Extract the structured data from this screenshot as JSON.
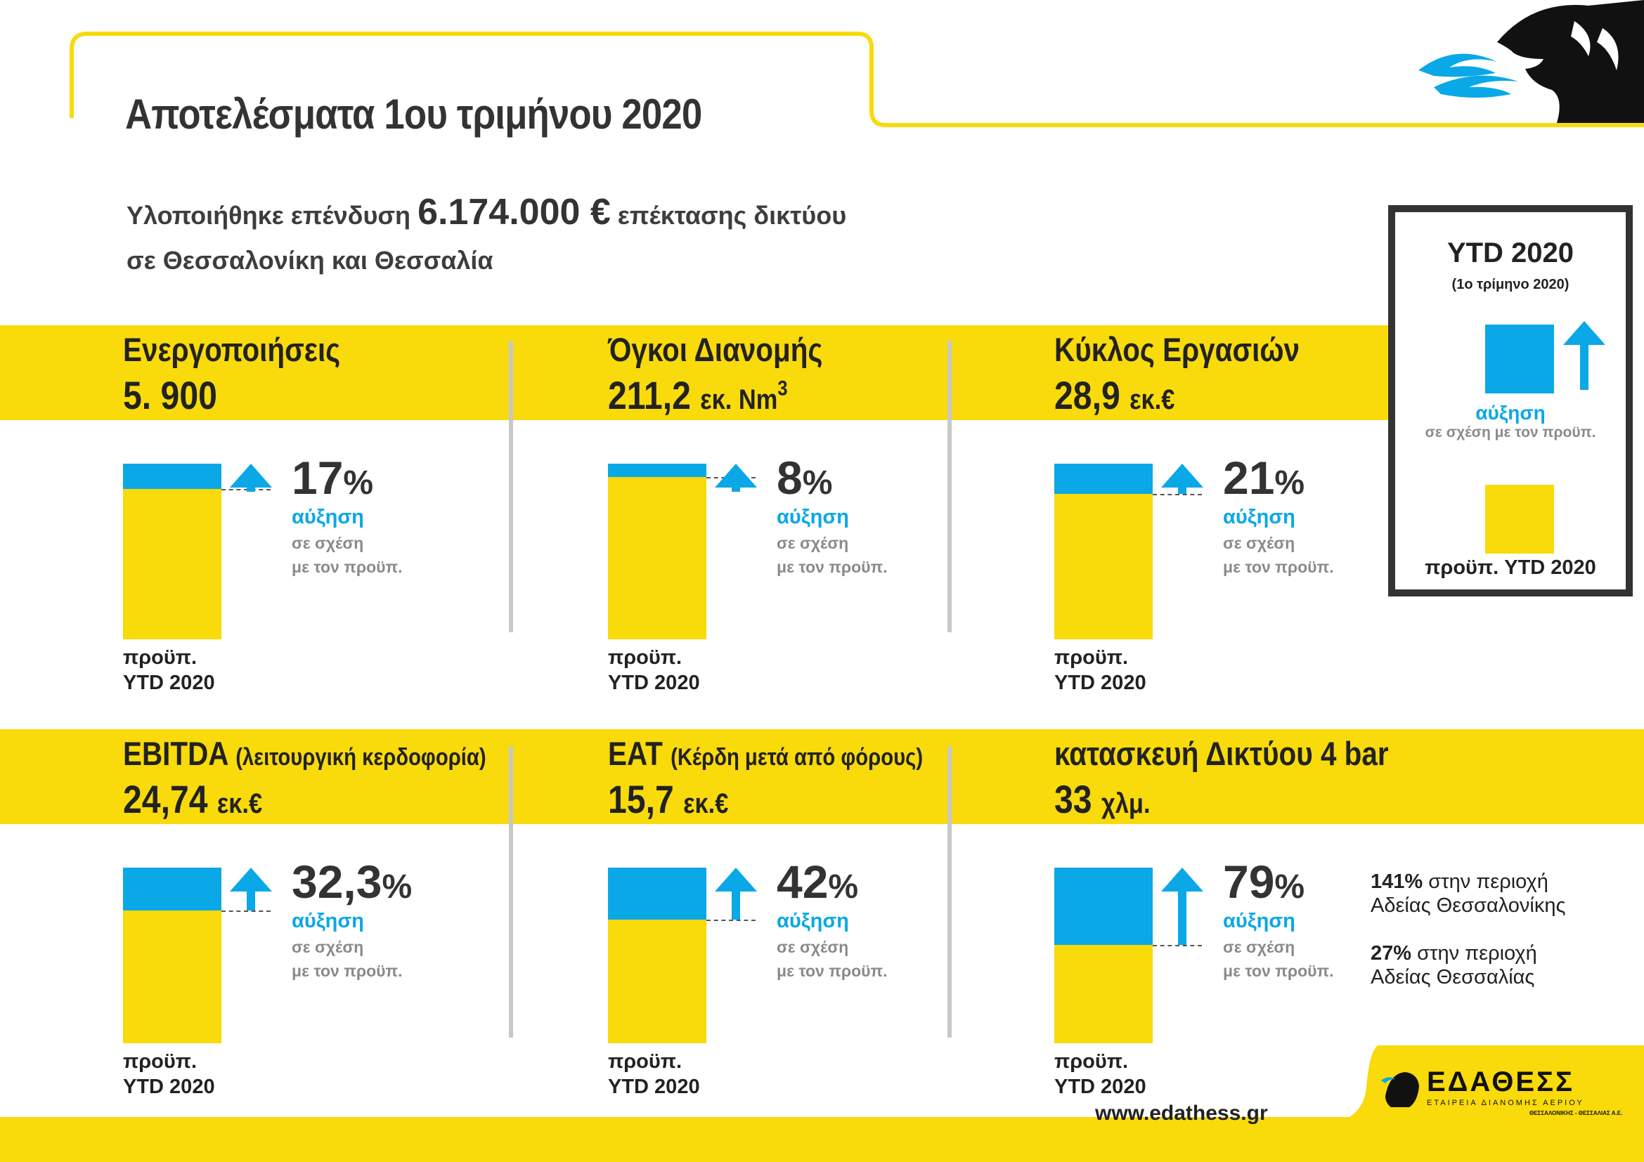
{
  "header": {
    "title": "Αποτελέσματα 1ου τριμήνου 2020",
    "subtitle_line1_prefix": "Υλοποιήθηκε επένδυση",
    "subtitle_amount": "6.174.000 €",
    "subtitle_line1_suffix": "επέκτασης δικτύου",
    "subtitle_line2": "σε Θεσσαλονίκη και Θεσσαλία"
  },
  "legend": {
    "title": "YTD 2020",
    "subtitle": "(1ο τρίμηνο 2020)",
    "increase_label": "αύξηση",
    "increase_desc": "σε σχέση με τον προϋπ.",
    "budget_label": "προϋπ. YTD 2020"
  },
  "cards": [
    {
      "title": "Ενεργοποιήσεις",
      "title_note": "",
      "value": "5. 900",
      "unit": "",
      "unit_sup": "",
      "percent": "17",
      "increase_pct": 17,
      "increase": "αύξηση",
      "relation_line1": "σε σχέση",
      "relation_line2": "με τον προϋπ.",
      "base_line1": "προϋπ.",
      "base_line2": "YTD 2020"
    },
    {
      "title": "Όγκοι Διανομής",
      "title_note": "",
      "value": "211,2",
      "unit": "εκ. Nm",
      "unit_sup": "3",
      "percent": "8",
      "increase_pct": 8,
      "increase": "αύξηση",
      "relation_line1": "σε σχέση",
      "relation_line2": "με τον προϋπ.",
      "base_line1": "προϋπ.",
      "base_line2": "YTD 2020"
    },
    {
      "title": "Κύκλος Εργασιών",
      "title_note": "",
      "value": "28,9",
      "unit": "εκ.€",
      "unit_sup": "",
      "percent": "21",
      "increase_pct": 21,
      "increase": "αύξηση",
      "relation_line1": "σε σχέση",
      "relation_line2": "με τον προϋπ.",
      "base_line1": "προϋπ.",
      "base_line2": "YTD 2020"
    },
    {
      "title": "EBITDA",
      "title_note": "(λειτουργική κερδοφορία)",
      "value": "24,74",
      "unit": "εκ.€",
      "unit_sup": "",
      "percent": "32,3",
      "increase_pct": 32.3,
      "increase": "αύξηση",
      "relation_line1": "σε σχέση",
      "relation_line2": "με τον προϋπ.",
      "base_line1": "προϋπ.",
      "base_line2": "YTD 2020"
    },
    {
      "title": "EAT",
      "title_note": "(Κέρδη μετά από φόρους)",
      "value": "15,7",
      "unit": "εκ.€",
      "unit_sup": "",
      "percent": "42",
      "increase_pct": 42,
      "increase": "αύξηση",
      "relation_line1": "σε σχέση",
      "relation_line2": "με τον προϋπ.",
      "base_line1": "προϋπ.",
      "base_line2": "YTD 2020"
    },
    {
      "title": "κατασκευή Δικτύου 4 bar",
      "title_note": "",
      "value": "33",
      "unit": "χλμ.",
      "unit_sup": "",
      "percent": "79",
      "increase_pct": 79,
      "increase": "αύξηση",
      "relation_line1": "σε σχέση",
      "relation_line2": "με τον προϋπ.",
      "base_line1": "προϋπ.",
      "base_line2": "YTD 2020"
    }
  ],
  "network_notes": [
    {
      "pct": "141%",
      "line1": "στην περιοχή",
      "line2": "Αδείας Θεσσαλονίκης"
    },
    {
      "pct": "27%",
      "line1": "στην περιοχή",
      "line2": "Αδείας Θεσσαλίας"
    }
  ],
  "footer": {
    "website": "www.edathess.gr",
    "logo_text": "ΕΔΑΘΕΣΣ",
    "logo_line1": "ΕΤΑΙΡΕΙΑ ΔΙΑΝΟΜΗΣ ΑΕΡΙΟΥ",
    "logo_line2": "ΘΕΣΣΑΛΟΝΙΚΗΣ - ΘΕΣΣΑΛΙΑΣ Α.Ε."
  },
  "colors": {
    "yellow": "#f9da0b",
    "blue": "#0aa8e6",
    "dark": "#333333"
  }
}
